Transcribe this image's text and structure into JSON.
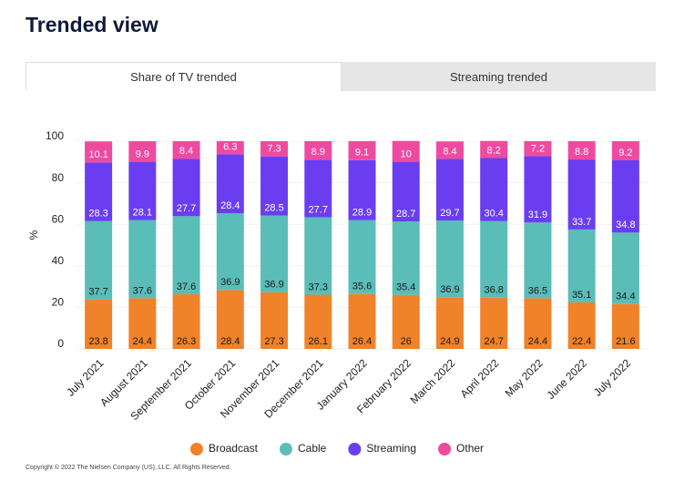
{
  "header": {
    "title": "Trended view"
  },
  "tabs": [
    {
      "label": "Share of TV trended",
      "active": true
    },
    {
      "label": "Streaming trended",
      "active": false
    }
  ],
  "chart_data": {
    "type": "stacked_bar",
    "y_label": "%",
    "categories": [
      "July 2021",
      "August 2021",
      "September 2021",
      "October 2021",
      "November 2021",
      "December 2021",
      "January 2022",
      "February 2022",
      "March 2022",
      "April 2022",
      "May 2022",
      "June 2022",
      "July 2022"
    ],
    "series": [
      {
        "name": "Broadcast",
        "color": "#f0822a",
        "values": [
          23.8,
          24.4,
          26.3,
          28.4,
          27.3,
          26.1,
          26.4,
          26,
          24.9,
          24.7,
          24.4,
          22.4,
          21.6
        ]
      },
      {
        "name": "Cable",
        "color": "#5bbdb8",
        "values": [
          37.7,
          37.6,
          37.6,
          36.9,
          36.9,
          37.3,
          35.6,
          35.4,
          36.9,
          36.8,
          36.5,
          35.1,
          34.4
        ]
      },
      {
        "name": "Streaming",
        "color": "#6a3ef0",
        "values": [
          28.3,
          28.1,
          27.7,
          28.4,
          28.5,
          27.7,
          28.9,
          28.7,
          29.7,
          30.4,
          31.9,
          33.7,
          34.8
        ]
      },
      {
        "name": "Other",
        "color": "#ee4ba0",
        "values": [
          10.1,
          9.9,
          8.4,
          6.3,
          7.3,
          8.9,
          9.1,
          10,
          8.4,
          8.2,
          7.2,
          8.8,
          9.2
        ]
      }
    ],
    "ylim": [
      0,
      100
    ],
    "yticks": [
      0,
      20,
      40,
      60,
      80,
      100
    ],
    "legend": "bottom"
  },
  "footer": {
    "copyright": "Copyright © 2022 The Nielsen Company (US), LLC. All Rights Reserved."
  }
}
